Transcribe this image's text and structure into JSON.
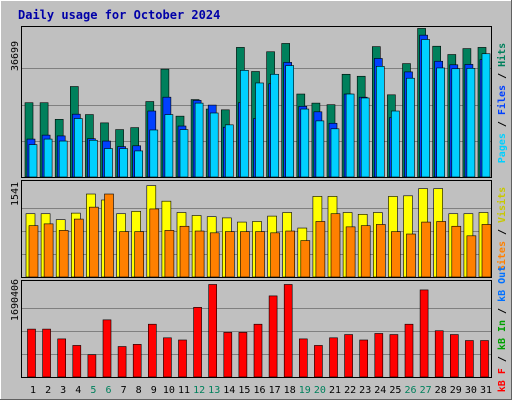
{
  "title": "Daily usage for October 2024",
  "colors": {
    "frame_bg": "#c0c0c0",
    "plot_bg": "#c0c0c0",
    "title_color": "#0000a8",
    "hits": "#00805c",
    "files": "#0040ff",
    "pages": "#00d0ff",
    "visits": "#ffff00",
    "sites": "#ff8000",
    "kbin": "#00a000",
    "kbout": "#0070ff",
    "kbf": "#ff0000",
    "weekend": "#00805c",
    "weekday": "#000000"
  },
  "legends": {
    "top": {
      "pages": "Pages",
      "files": "Files",
      "hits": "Hits",
      "sep": " / "
    },
    "middle": {
      "sites": "Sites",
      "visits": "Visits",
      "sep": " / "
    },
    "bottom": {
      "kbf": "kB F",
      "kbin": "kB In",
      "kbout": "kB Out",
      "sep": " / "
    }
  },
  "chart_data": [
    {
      "type": "bar",
      "title": "Daily usage for October 2024",
      "ymax_label": "36699",
      "ylim": [
        0,
        36699
      ],
      "categories": [
        "1",
        "2",
        "3",
        "4",
        "5",
        "6",
        "7",
        "8",
        "9",
        "10",
        "11",
        "12",
        "13",
        "14",
        "15",
        "16",
        "17",
        "18",
        "19",
        "20",
        "21",
        "22",
        "23",
        "24",
        "25",
        "26",
        "27",
        "28",
        "29",
        "30",
        "31"
      ],
      "weekend_days": [
        "5",
        "6",
        "12",
        "13",
        "19",
        "20",
        "26",
        "27"
      ],
      "series": [
        {
          "name": "Hits",
          "values": [
            18800,
            18800,
            14600,
            22900,
            15800,
            13700,
            12000,
            12500,
            19100,
            27300,
            15400,
            19600,
            17200,
            17000,
            32800,
            26700,
            31700,
            33800,
            21000,
            18700,
            18300,
            26000,
            25500,
            33000,
            20800,
            28700,
            37600,
            33100,
            31000,
            32500,
            32800
          ]
        },
        {
          "name": "Files",
          "values": [
            9600,
            10600,
            10400,
            15900,
            9700,
            9100,
            7700,
            7900,
            16700,
            20200,
            12900,
            19400,
            18200,
            12600,
            18800,
            14800,
            23600,
            29000,
            17900,
            16500,
            13600,
            21000,
            20200,
            30000,
            15000,
            26600,
            35900,
            29300,
            28400,
            28500,
            29700
          ]
        },
        {
          "name": "Pages",
          "values": [
            8200,
            9600,
            9100,
            14800,
            9300,
            7200,
            7200,
            6600,
            11900,
            15800,
            12000,
            18700,
            16200,
            13200,
            27000,
            23800,
            26000,
            28200,
            17200,
            14200,
            12200,
            21000,
            20000,
            28000,
            16700,
            25000,
            34800,
            27600,
            27400,
            27500,
            31200
          ]
        }
      ],
      "grid": true
    },
    {
      "type": "bar",
      "ymax_label": "1541",
      "ylim": [
        0,
        1541
      ],
      "categories": [
        "1",
        "2",
        "3",
        "4",
        "5",
        "6",
        "7",
        "8",
        "9",
        "10",
        "11",
        "12",
        "13",
        "14",
        "15",
        "16",
        "17",
        "18",
        "19",
        "20",
        "21",
        "22",
        "23",
        "24",
        "25",
        "26",
        "27",
        "28",
        "29",
        "30",
        "31"
      ],
      "series": [
        {
          "name": "Visits",
          "values": [
            1060,
            1060,
            960,
            1070,
            1390,
            1290,
            1060,
            1100,
            1530,
            1270,
            1080,
            1030,
            1010,
            990,
            920,
            930,
            1020,
            1080,
            820,
            1350,
            1350,
            1080,
            1050,
            1080,
            1350,
            1360,
            1480,
            1480,
            1060,
            1060,
            1080
          ]
        },
        {
          "name": "Sites",
          "values": [
            860,
            890,
            780,
            970,
            1170,
            1390,
            760,
            760,
            1140,
            780,
            850,
            770,
            740,
            760,
            760,
            760,
            740,
            770,
            610,
            930,
            1060,
            840,
            860,
            880,
            760,
            720,
            920,
            930,
            850,
            690,
            880
          ]
        }
      ],
      "grid": true
    },
    {
      "type": "bar",
      "ymax_label": "1690406",
      "ylim": [
        0,
        1690406
      ],
      "categories": [
        "1",
        "2",
        "3",
        "4",
        "5",
        "6",
        "7",
        "8",
        "9",
        "10",
        "11",
        "12",
        "13",
        "14",
        "15",
        "16",
        "17",
        "18",
        "19",
        "20",
        "21",
        "22",
        "23",
        "24",
        "25",
        "26",
        "27",
        "28",
        "29",
        "30",
        "31"
      ],
      "series": [
        {
          "name": "kB F",
          "values": [
            880000,
            880000,
            700000,
            580000,
            410000,
            1050000,
            560000,
            600000,
            970000,
            720000,
            680000,
            1280000,
            1700000,
            820000,
            820000,
            970000,
            1490000,
            1700000,
            700000,
            580000,
            720000,
            780000,
            680000,
            800000,
            780000,
            970000,
            1600000,
            850000,
            780000,
            670000,
            670000
          ]
        }
      ],
      "grid": true
    }
  ]
}
